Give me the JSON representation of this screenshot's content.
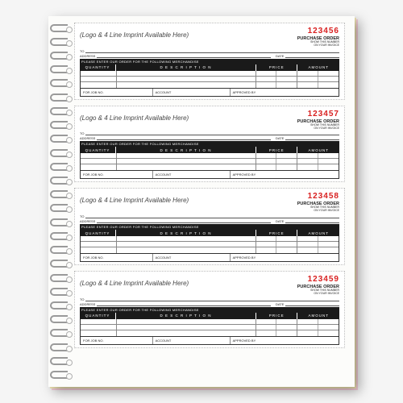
{
  "background_color": "#f5f5f5",
  "page_color": "#fcfcfa",
  "carbon_colors": {
    "yellow": "#f4e8b8",
    "pink": "#f5cdd8"
  },
  "po_number_color": "#d81f1f",
  "header_bar_color": "#1a1a1a",
  "labels": {
    "imprint": "(Logo & 4 Line Imprint Available Here)",
    "purchase_order": "PURCHASE ORDER",
    "show_number": "SHOW THIS NUMBER",
    "on_invoice": "ON YOUR INVOICE",
    "to": "TO",
    "address": "ADDRESS",
    "date": "DATE",
    "instruction": "PLEASE ENTER OUR ORDER FOR THE FOLLOWING MERCHANDISE",
    "quantity": "QUANTITY",
    "description": "D E S C R I P T I O N",
    "price": "PRICE",
    "amount": "AMOUNT",
    "for_job": "FOR JOB NO.",
    "account": "ACCOUNT",
    "approved": "APPROVED BY"
  },
  "forms": [
    {
      "po": "123456"
    },
    {
      "po": "123457"
    },
    {
      "po": "123458"
    },
    {
      "po": "123459"
    }
  ]
}
